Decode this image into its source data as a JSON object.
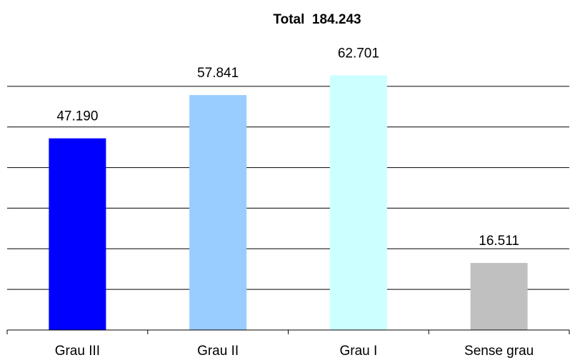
{
  "chart_data": {
    "type": "bar",
    "title": "Total  184.243",
    "categories": [
      "Grau III",
      "Grau II",
      "Grau I",
      "Sense grau"
    ],
    "values": [
      47190,
      57841,
      62701,
      16511
    ],
    "value_labels": [
      "47.190",
      "57.841",
      "62.701",
      "16.511"
    ],
    "colors": [
      "#0000ff",
      "#99ccff",
      "#ccffff",
      "#c0c0c0"
    ],
    "ylim": [
      0,
      70000
    ],
    "yticks": [
      0,
      10000,
      20000,
      30000,
      40000,
      50000,
      60000
    ],
    "grid": true,
    "ytick_labels": false
  }
}
